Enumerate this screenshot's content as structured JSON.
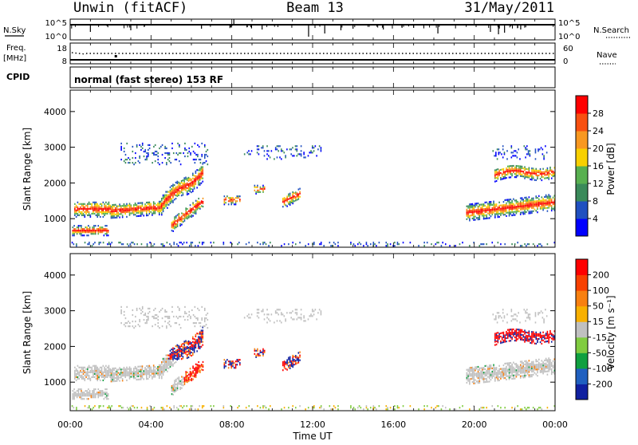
{
  "header": {
    "station": "Unwin (fitACF)",
    "beam": "Beam 13",
    "date": "31/May/2011"
  },
  "nsky_panel": {
    "left_label": "N.Sky",
    "left_ticks": [
      "10^5",
      "10^0"
    ],
    "right_label": "N.Search",
    "right_ticks": [
      "10^5",
      "10^0"
    ]
  },
  "freq_panel": {
    "left_label_1": "Freq.",
    "left_label_2": "[MHz]",
    "left_ticks": [
      "18",
      "8"
    ],
    "right_label": "Nave",
    "right_ticks": [
      "60",
      "0"
    ]
  },
  "cpid": {
    "label": "CPID",
    "value": "normal (fast stereo) 153 RF"
  },
  "colors": {
    "power_scale": [
      "#0000ff",
      "#2050c0",
      "#3a8a5a",
      "#58b050",
      "#f8d000",
      "#f89820",
      "#f85010",
      "#ff0000"
    ],
    "velocity_scale": [
      "#1020a0",
      "#2060c0",
      "#10a040",
      "#80cc40",
      "#c0c0c0",
      "#f8b000",
      "#f88010",
      "#f84000",
      "#ff0000"
    ]
  },
  "chart_data": [
    {
      "type": "heatmap",
      "ylabel": "Slant Range [km]",
      "yticks": [
        "1000",
        "2000",
        "3000",
        "4000"
      ],
      "ylim": [
        200,
        4600
      ],
      "xlim": [
        0,
        24
      ],
      "colorbar": {
        "label": "Power [dB]",
        "ticks": [
          "4",
          "8",
          "12",
          "16",
          "20",
          "24",
          "28"
        ],
        "range": [
          0,
          32
        ]
      }
    },
    {
      "type": "heatmap",
      "ylabel": "Slant Range [km]",
      "yticks": [
        "1000",
        "2000",
        "3000",
        "4000"
      ],
      "ylim": [
        200,
        4600
      ],
      "xlim": [
        0,
        24
      ],
      "xlabel": "Time UT",
      "xticks": [
        "00:00",
        "04:00",
        "08:00",
        "12:00",
        "16:00",
        "20:00",
        "00:00"
      ],
      "colorbar": {
        "label": "Velocity [m s⁻¹]",
        "ticks": [
          "200",
          "100",
          "50",
          "15",
          "-15",
          "-50",
          "-100",
          "-200"
        ]
      }
    }
  ]
}
